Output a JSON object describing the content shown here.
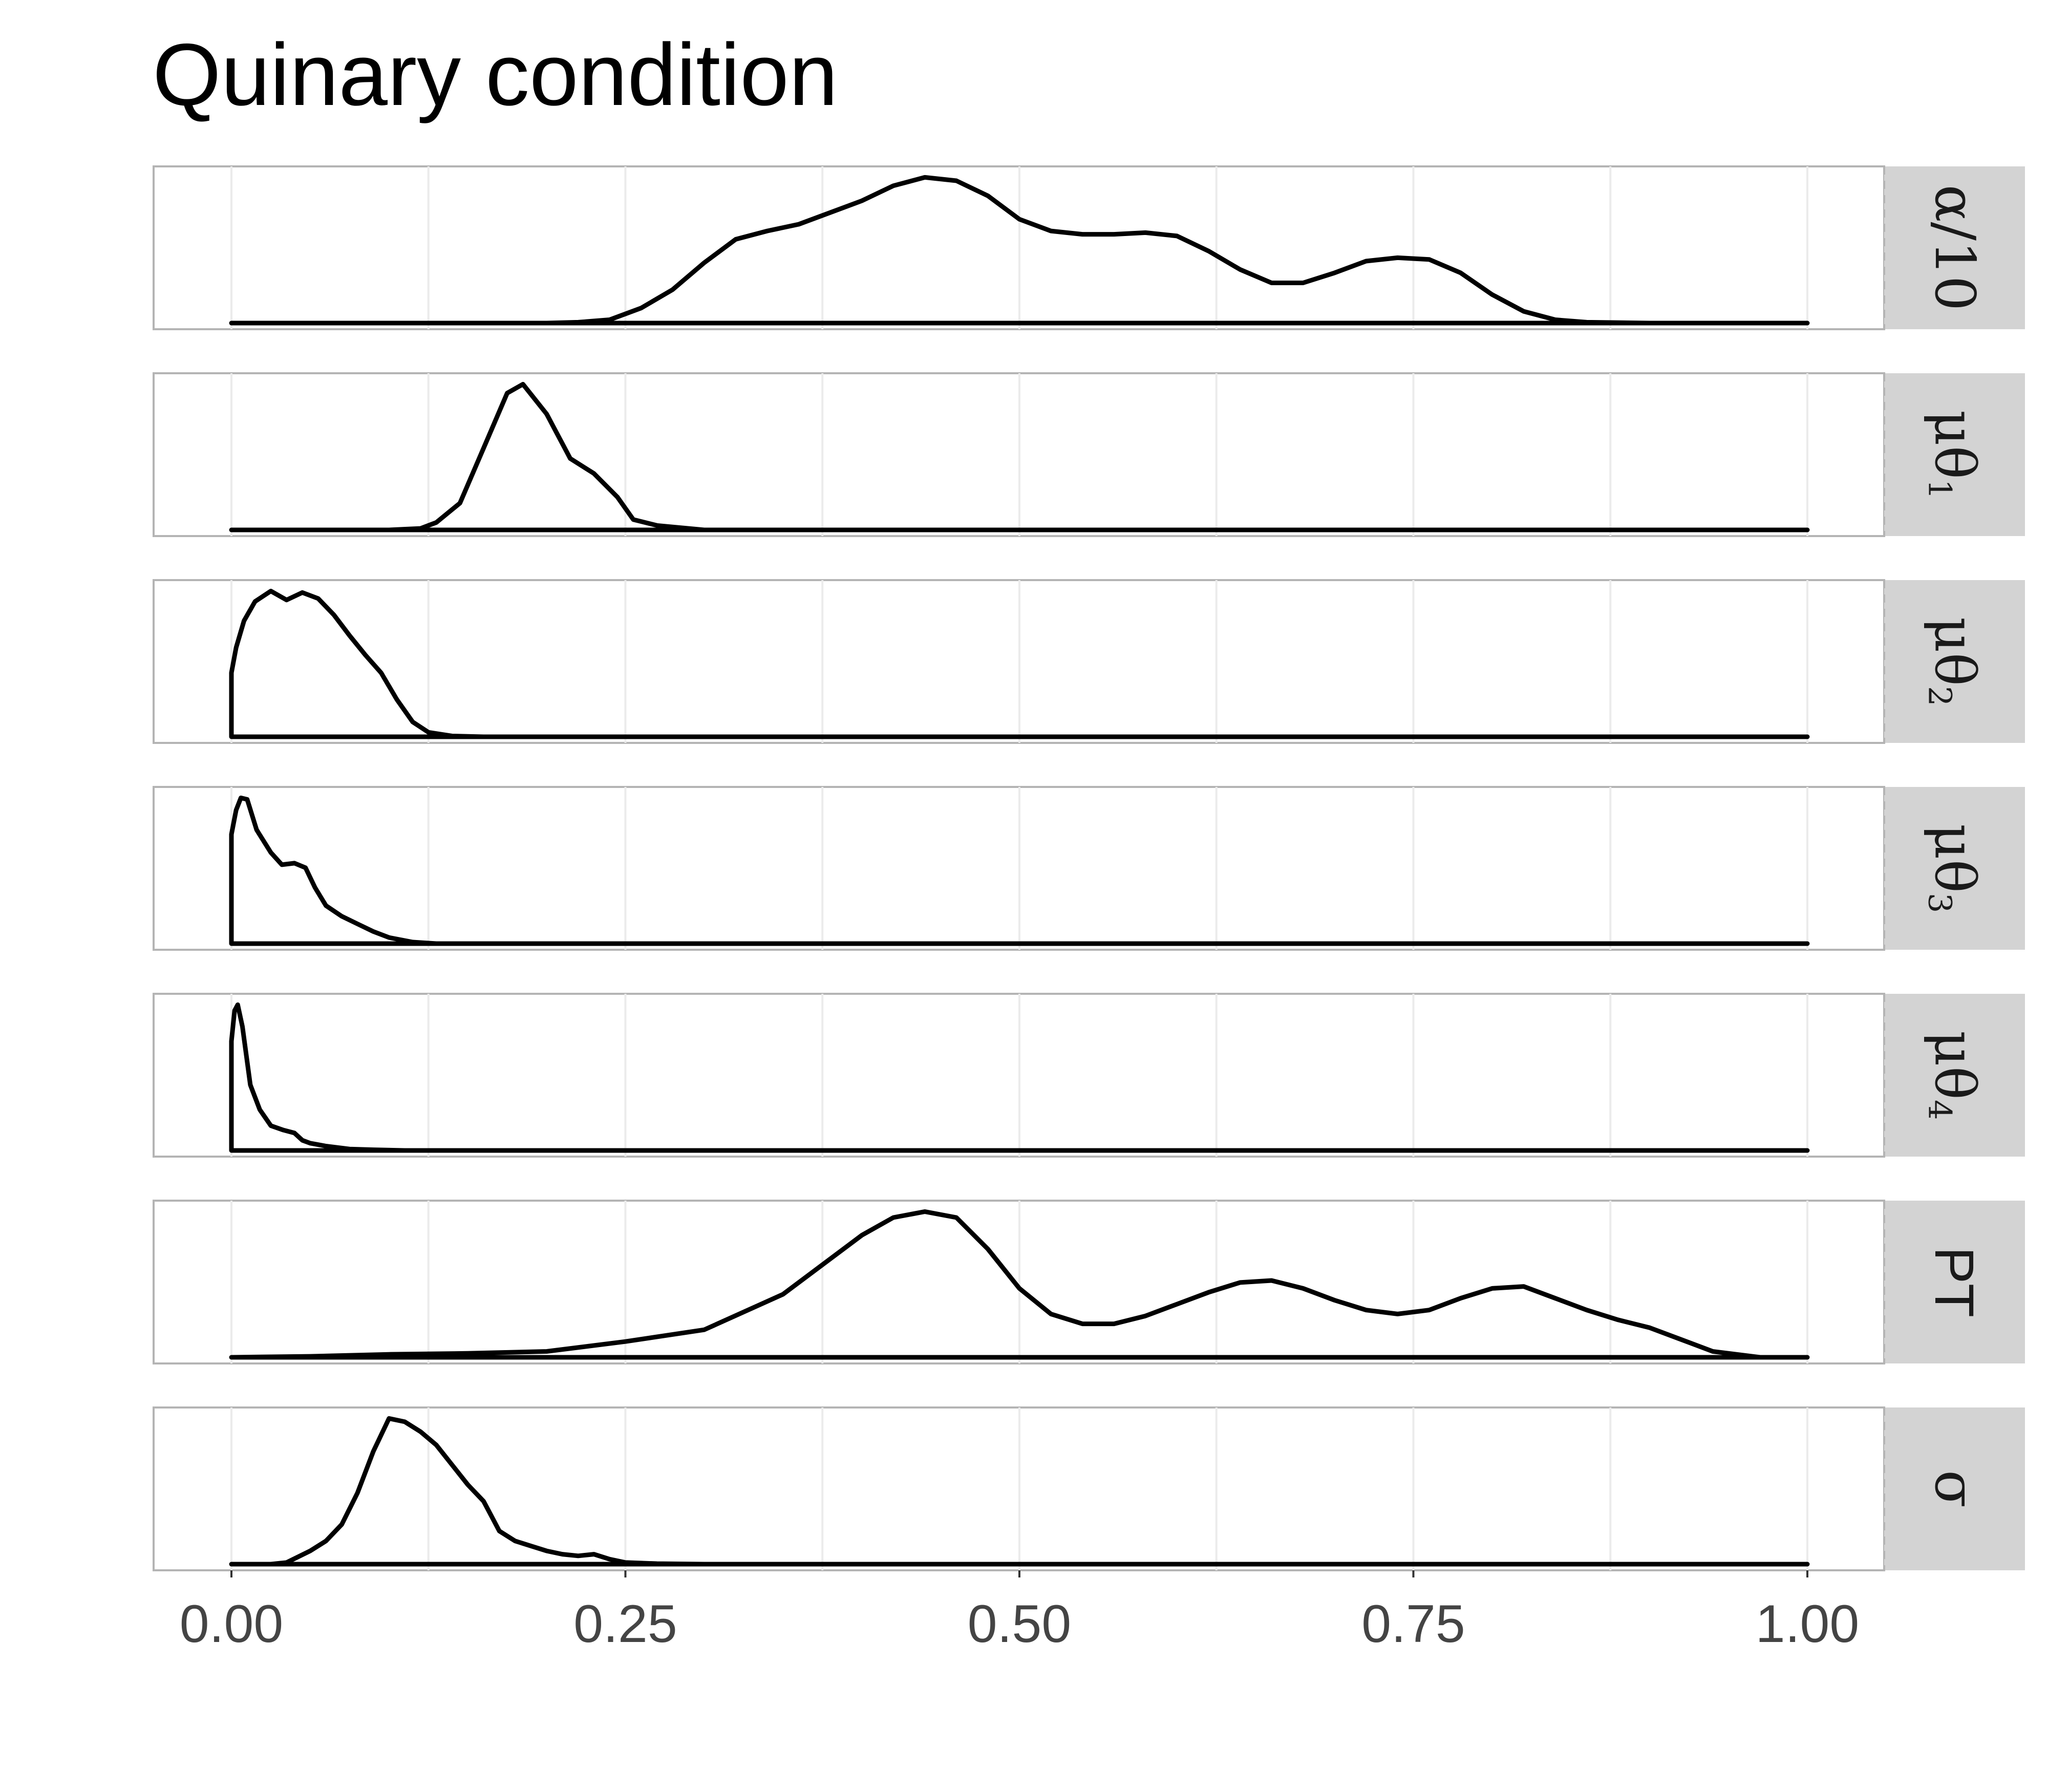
{
  "chart_data": {
    "type": "area",
    "title": "Quinary condition",
    "xlabel": "",
    "ylabel": "",
    "xlim": [
      0,
      1
    ],
    "x_ticks": [
      0,
      0.25,
      0.5,
      0.75,
      1
    ],
    "x_tick_labels": [
      "0.00",
      "0.25",
      "0.50",
      "0.75",
      "1.00"
    ],
    "grid": true,
    "facet_strip_position": "right",
    "panels": [
      {
        "label": "α/10",
        "points": [
          [
            0,
            0
          ],
          [
            0.2,
            0
          ],
          [
            0.22,
            0.005
          ],
          [
            0.24,
            0.02
          ],
          [
            0.26,
            0.09
          ],
          [
            0.28,
            0.2
          ],
          [
            0.3,
            0.36
          ],
          [
            0.32,
            0.5
          ],
          [
            0.34,
            0.55
          ],
          [
            0.36,
            0.59
          ],
          [
            0.38,
            0.66
          ],
          [
            0.4,
            0.73
          ],
          [
            0.42,
            0.82
          ],
          [
            0.44,
            0.87
          ],
          [
            0.46,
            0.85
          ],
          [
            0.48,
            0.76
          ],
          [
            0.5,
            0.62
          ],
          [
            0.52,
            0.55
          ],
          [
            0.54,
            0.53
          ],
          [
            0.56,
            0.53
          ],
          [
            0.58,
            0.54
          ],
          [
            0.6,
            0.52
          ],
          [
            0.62,
            0.43
          ],
          [
            0.64,
            0.32
          ],
          [
            0.66,
            0.24
          ],
          [
            0.68,
            0.24
          ],
          [
            0.7,
            0.3
          ],
          [
            0.72,
            0.37
          ],
          [
            0.74,
            0.39
          ],
          [
            0.76,
            0.38
          ],
          [
            0.78,
            0.3
          ],
          [
            0.8,
            0.17
          ],
          [
            0.82,
            0.07
          ],
          [
            0.84,
            0.02
          ],
          [
            0.86,
            0.005
          ],
          [
            0.9,
            0
          ],
          [
            1,
            0
          ]
        ]
      },
      {
        "label": "μθ1",
        "points": [
          [
            0,
            0
          ],
          [
            0.1,
            0
          ],
          [
            0.12,
            0.01
          ],
          [
            0.13,
            0.05
          ],
          [
            0.145,
            0.18
          ],
          [
            0.16,
            0.55
          ],
          [
            0.175,
            0.92
          ],
          [
            0.185,
            0.98
          ],
          [
            0.2,
            0.78
          ],
          [
            0.215,
            0.48
          ],
          [
            0.23,
            0.38
          ],
          [
            0.245,
            0.22
          ],
          [
            0.255,
            0.07
          ],
          [
            0.27,
            0.03
          ],
          [
            0.29,
            0.01
          ],
          [
            0.3,
            0
          ],
          [
            1,
            0
          ]
        ]
      },
      {
        "label": "μθ2",
        "points": [
          [
            0,
            0.43
          ],
          [
            0.003,
            0.6
          ],
          [
            0.008,
            0.78
          ],
          [
            0.015,
            0.91
          ],
          [
            0.025,
            0.98
          ],
          [
            0.035,
            0.92
          ],
          [
            0.045,
            0.97
          ],
          [
            0.055,
            0.93
          ],
          [
            0.065,
            0.82
          ],
          [
            0.075,
            0.68
          ],
          [
            0.085,
            0.55
          ],
          [
            0.095,
            0.43
          ],
          [
            0.105,
            0.25
          ],
          [
            0.115,
            0.1
          ],
          [
            0.125,
            0.03
          ],
          [
            0.14,
            0.005
          ],
          [
            0.16,
            0
          ],
          [
            1,
            0
          ]
        ]
      },
      {
        "label": "μθ3",
        "points": [
          [
            0,
            0.72
          ],
          [
            0.003,
            0.88
          ],
          [
            0.006,
            0.96
          ],
          [
            0.01,
            0.95
          ],
          [
            0.016,
            0.75
          ],
          [
            0.025,
            0.6
          ],
          [
            0.032,
            0.52
          ],
          [
            0.04,
            0.53
          ],
          [
            0.047,
            0.5
          ],
          [
            0.053,
            0.37
          ],
          [
            0.06,
            0.25
          ],
          [
            0.07,
            0.18
          ],
          [
            0.08,
            0.13
          ],
          [
            0.09,
            0.08
          ],
          [
            0.1,
            0.04
          ],
          [
            0.115,
            0.01
          ],
          [
            0.13,
            0
          ],
          [
            1,
            0
          ]
        ]
      },
      {
        "label": "μθ4",
        "points": [
          [
            0,
            0.75
          ],
          [
            0.002,
            0.96
          ],
          [
            0.004,
            1.0
          ],
          [
            0.007,
            0.85
          ],
          [
            0.012,
            0.45
          ],
          [
            0.018,
            0.28
          ],
          [
            0.025,
            0.17
          ],
          [
            0.033,
            0.14
          ],
          [
            0.04,
            0.12
          ],
          [
            0.045,
            0.07
          ],
          [
            0.05,
            0.05
          ],
          [
            0.06,
            0.03
          ],
          [
            0.075,
            0.01
          ],
          [
            0.09,
            0.005
          ],
          [
            0.11,
            0
          ],
          [
            1,
            0
          ]
        ]
      },
      {
        "label": "PT",
        "points": [
          [
            0,
            0
          ],
          [
            0.05,
            0.005
          ],
          [
            0.1,
            0.015
          ],
          [
            0.15,
            0.02
          ],
          [
            0.2,
            0.03
          ],
          [
            0.25,
            0.08
          ],
          [
            0.3,
            0.14
          ],
          [
            0.35,
            0.32
          ],
          [
            0.4,
            0.62
          ],
          [
            0.42,
            0.71
          ],
          [
            0.44,
            0.74
          ],
          [
            0.46,
            0.71
          ],
          [
            0.48,
            0.55
          ],
          [
            0.5,
            0.35
          ],
          [
            0.52,
            0.22
          ],
          [
            0.54,
            0.17
          ],
          [
            0.56,
            0.17
          ],
          [
            0.58,
            0.21
          ],
          [
            0.6,
            0.27
          ],
          [
            0.62,
            0.33
          ],
          [
            0.64,
            0.38
          ],
          [
            0.66,
            0.39
          ],
          [
            0.68,
            0.35
          ],
          [
            0.7,
            0.29
          ],
          [
            0.72,
            0.24
          ],
          [
            0.74,
            0.22
          ],
          [
            0.76,
            0.24
          ],
          [
            0.78,
            0.3
          ],
          [
            0.8,
            0.35
          ],
          [
            0.82,
            0.36
          ],
          [
            0.84,
            0.3
          ],
          [
            0.86,
            0.24
          ],
          [
            0.88,
            0.19
          ],
          [
            0.9,
            0.15
          ],
          [
            0.92,
            0.09
          ],
          [
            0.94,
            0.03
          ],
          [
            0.97,
            0
          ],
          [
            1,
            0
          ]
        ]
      },
      {
        "label": "σ",
        "points": [
          [
            0,
            0
          ],
          [
            0.025,
            0
          ],
          [
            0.035,
            0.01
          ],
          [
            0.05,
            0.08
          ],
          [
            0.06,
            0.14
          ],
          [
            0.07,
            0.24
          ],
          [
            0.08,
            0.43
          ],
          [
            0.09,
            0.68
          ],
          [
            0.1,
            0.88
          ],
          [
            0.11,
            0.86
          ],
          [
            0.12,
            0.8
          ],
          [
            0.13,
            0.72
          ],
          [
            0.14,
            0.6
          ],
          [
            0.15,
            0.48
          ],
          [
            0.16,
            0.38
          ],
          [
            0.17,
            0.2
          ],
          [
            0.18,
            0.14
          ],
          [
            0.19,
            0.11
          ],
          [
            0.2,
            0.08
          ],
          [
            0.21,
            0.06
          ],
          [
            0.22,
            0.05
          ],
          [
            0.23,
            0.06
          ],
          [
            0.24,
            0.03
          ],
          [
            0.25,
            0.01
          ],
          [
            0.27,
            0.003
          ],
          [
            0.3,
            0
          ],
          [
            1,
            0
          ]
        ]
      }
    ]
  }
}
